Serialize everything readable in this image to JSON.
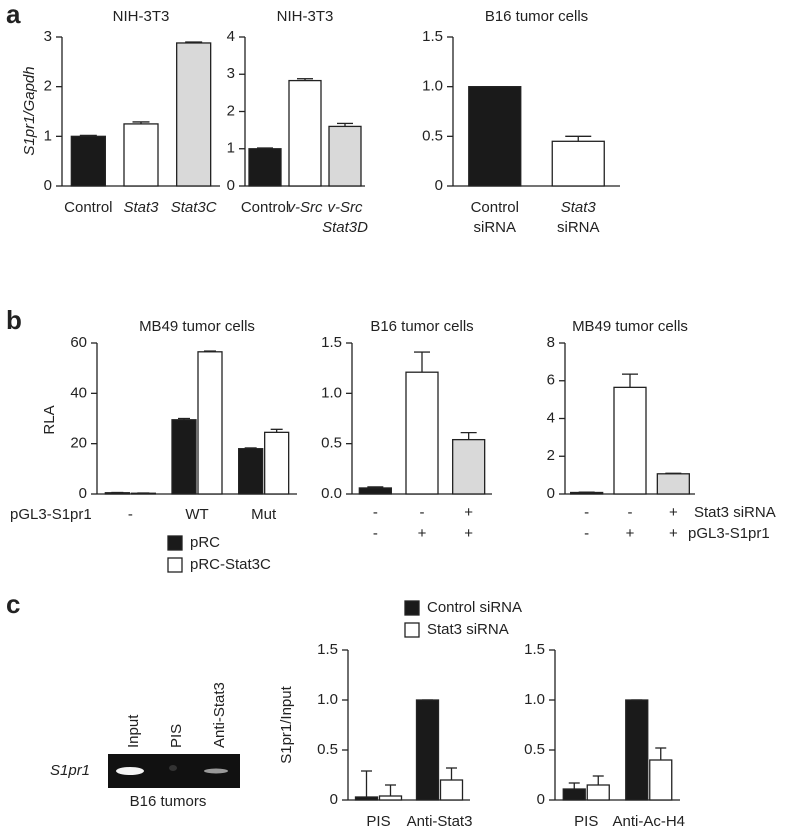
{
  "panel_labels": [
    "a",
    "b",
    "c"
  ],
  "chart_data": [
    {
      "type": "bar",
      "title": "NIH-3T3",
      "ylabel": "S1pr1/Gapdh",
      "categories": [
        [
          "Control"
        ],
        [
          "Stat3"
        ],
        [
          "Stat3C"
        ]
      ],
      "values": [
        1.0,
        1.25,
        2.88
      ],
      "errors": [
        0.02,
        0.04,
        0.02
      ],
      "colors": [
        "#1a1a1a",
        "#ffffff",
        "#d9d9d9"
      ],
      "ylim": [
        0,
        3
      ],
      "yticks": [
        0,
        1,
        2,
        3
      ]
    },
    {
      "type": "bar",
      "title": "NIH-3T3",
      "categories": [
        [
          "Control"
        ],
        [
          "v-Src"
        ],
        [
          "v-Src",
          "Stat3D"
        ]
      ],
      "values": [
        1.0,
        2.83,
        1.6
      ],
      "errors": [
        0.02,
        0.05,
        0.08
      ],
      "colors": [
        "#1a1a1a",
        "#ffffff",
        "#d9d9d9"
      ],
      "ylim": [
        0,
        4
      ],
      "yticks": [
        0,
        1,
        2,
        3,
        4
      ]
    },
    {
      "type": "bar",
      "title": "B16 tumor cells",
      "categories": [
        [
          "Control",
          "siRNA"
        ],
        [
          "Stat3",
          "siRNA"
        ]
      ],
      "values": [
        1.0,
        0.45
      ],
      "errors": [
        0,
        0.05
      ],
      "colors": [
        "#1a1a1a",
        "#ffffff"
      ],
      "ylim": [
        0,
        1.5
      ],
      "yticks": [
        0,
        0.5,
        {
          "value": 1,
          "label": "1.0"
        },
        1.5
      ]
    },
    {
      "type": "grouped-bar",
      "title": "MB49 tumor cells",
      "ylabel": "RLA",
      "row_label": "pGL3-S1pr1",
      "categories": [
        [
          "-"
        ],
        [
          "WT"
        ],
        [
          "Mut"
        ]
      ],
      "series": [
        {
          "name": "pRC",
          "color": "#1a1a1a",
          "values": [
            0.5,
            29.5,
            18
          ],
          "errors": [
            0.1,
            0.5,
            0.3
          ]
        },
        {
          "name": "pRC-Stat3C",
          "color": "#ffffff",
          "values": [
            0.3,
            56.5,
            24.5
          ],
          "errors": [
            0.1,
            0.3,
            1.2
          ]
        }
      ],
      "ylim": [
        0,
        60
      ],
      "yticks": [
        0,
        20,
        40,
        60
      ]
    },
    {
      "type": "bar",
      "title": "B16 tumor cells",
      "conditions": [
        [
          "-",
          "-",
          "+"
        ],
        [
          "-",
          "+",
          "+"
        ]
      ],
      "values": [
        0.06,
        1.21,
        0.54
      ],
      "errors": [
        0.01,
        0.2,
        0.07
      ],
      "colors": [
        "#1a1a1a",
        "#ffffff",
        "#d9d9d9"
      ],
      "ylim": [
        0,
        1.5
      ],
      "yticks": [
        {
          "value": 0,
          "label": "0.0"
        },
        0.5,
        {
          "value": 1,
          "label": "1.0"
        },
        1.5
      ]
    },
    {
      "type": "bar",
      "title": "MB49 tumor cells",
      "conditions": [
        [
          "-",
          "-",
          "+"
        ],
        [
          "-",
          "+",
          "+"
        ]
      ],
      "condition_names": [
        "Stat3 siRNA",
        "pGL3-S1pr1"
      ],
      "values": [
        0.08,
        5.65,
        1.07
      ],
      "errors": [
        0.02,
        0.7,
        0.03
      ],
      "colors": [
        "#1a1a1a",
        "#ffffff",
        "#d9d9d9"
      ],
      "ylim": [
        0,
        8
      ],
      "yticks": [
        0,
        2,
        4,
        6,
        8
      ]
    },
    {
      "type": "grouped-bar",
      "ylabel": "S1pr1/Input",
      "categories": [
        [
          "PIS"
        ],
        [
          "Anti-Stat3"
        ]
      ],
      "series": [
        {
          "name": "Control siRNA",
          "color": "#1a1a1a",
          "values": [
            0.03,
            1.0
          ],
          "errors": [
            0.26,
            0
          ]
        },
        {
          "name": "Stat3 siRNA",
          "color": "#ffffff",
          "values": [
            0.04,
            0.2
          ],
          "errors": [
            0.11,
            0.12
          ]
        }
      ],
      "ylim": [
        0,
        1.5
      ],
      "yticks": [
        0,
        0.5,
        {
          "value": 1,
          "label": "1.0"
        },
        1.5
      ]
    },
    {
      "type": "grouped-bar",
      "categories": [
        [
          "PIS"
        ],
        [
          "Anti-Ac-H4"
        ]
      ],
      "series": [
        {
          "color": "#1a1a1a",
          "values": [
            0.11,
            1.0
          ],
          "errors": [
            0.06,
            0
          ]
        },
        {
          "color": "#ffffff",
          "values": [
            0.15,
            0.4
          ],
          "errors": [
            0.09,
            0.12
          ]
        }
      ],
      "ylim": [
        0,
        1.5
      ],
      "yticks": [
        0,
        0.5,
        {
          "value": 1,
          "label": "1.0"
        },
        1.5
      ]
    }
  ],
  "gel": {
    "lanes": [
      "Input",
      "PIS",
      "Anti-Stat3"
    ],
    "row_label": "S1pr1",
    "caption": "B16 tumors"
  }
}
